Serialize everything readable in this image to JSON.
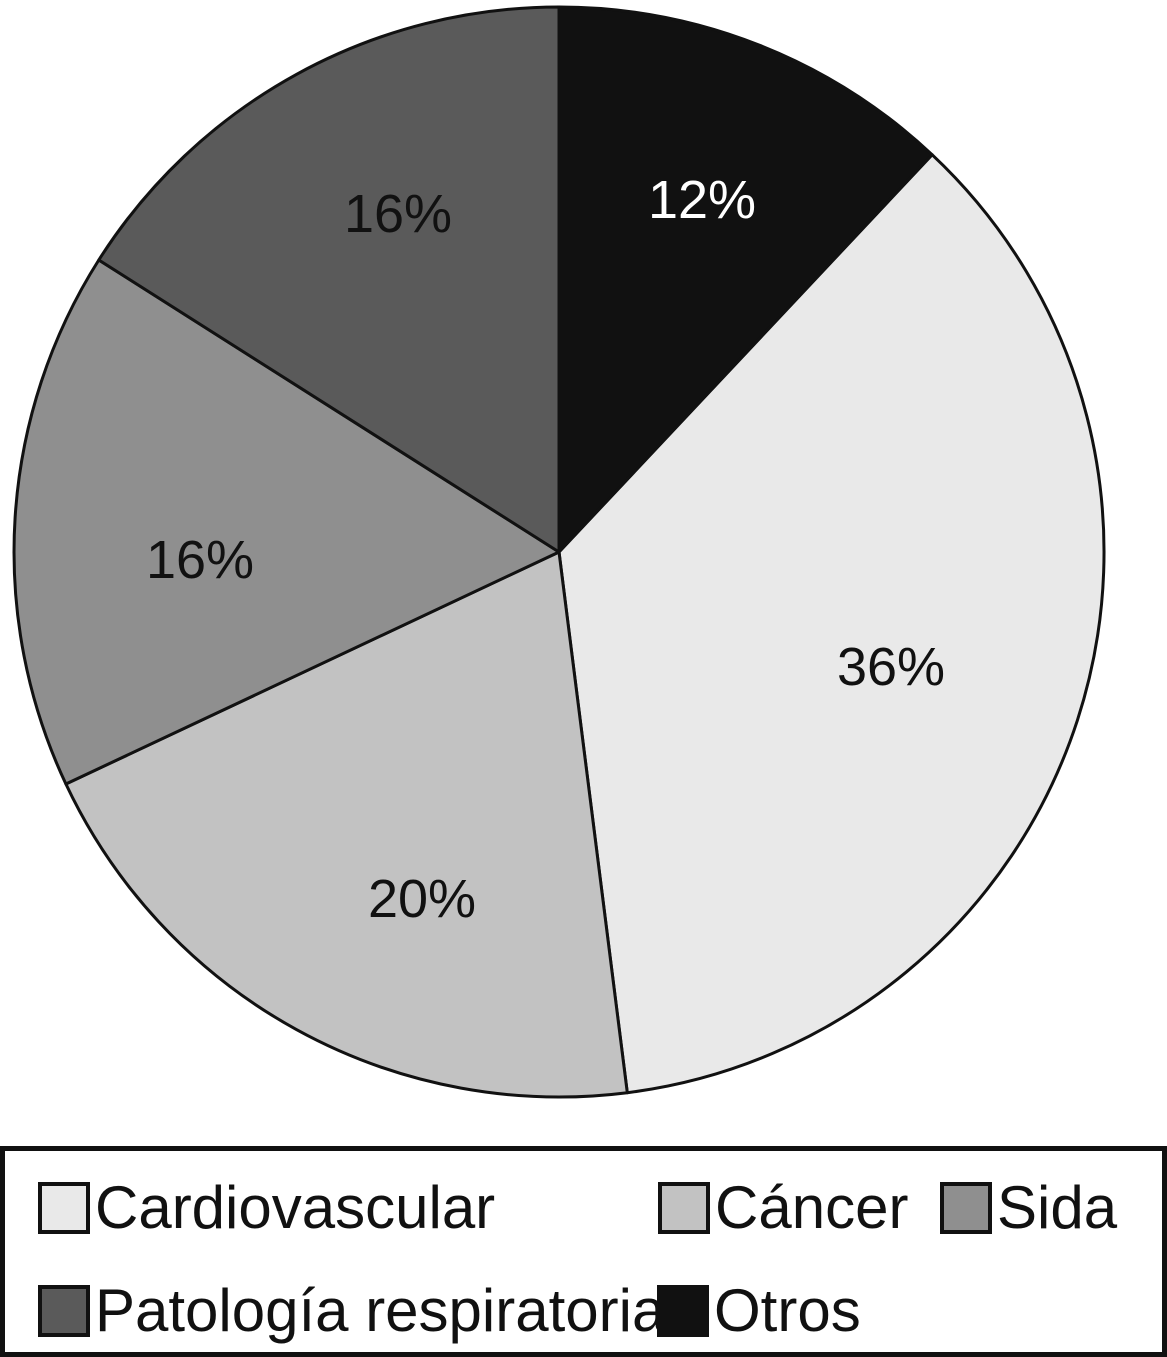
{
  "chart_data": {
    "type": "pie",
    "legend_position": "bottom",
    "direction": "clockwise",
    "start_angle_deg": 43.2,
    "total": 100,
    "series": [
      {
        "key": "cardiovascular",
        "label": "Cardiovascular",
        "value": 36,
        "display": "36%",
        "color": "#e9e9e9",
        "label_color": "#111111"
      },
      {
        "key": "cancer",
        "label": "Cáncer",
        "value": 20,
        "display": "20%",
        "color": "#c2c2c2",
        "label_color": "#111111"
      },
      {
        "key": "sida",
        "label": "Sida",
        "value": 16,
        "display": "16%",
        "color": "#8f8f8f",
        "label_color": "#111111"
      },
      {
        "key": "patologia-respiratoria",
        "label": "Patología respiratoria",
        "value": 16,
        "display": "16%",
        "color": "#5a5a5a",
        "label_color": "#111111"
      },
      {
        "key": "otros",
        "label": "Otros",
        "value": 12,
        "display": "12%",
        "color": "#111111",
        "label_color": "#ffffff"
      }
    ]
  }
}
